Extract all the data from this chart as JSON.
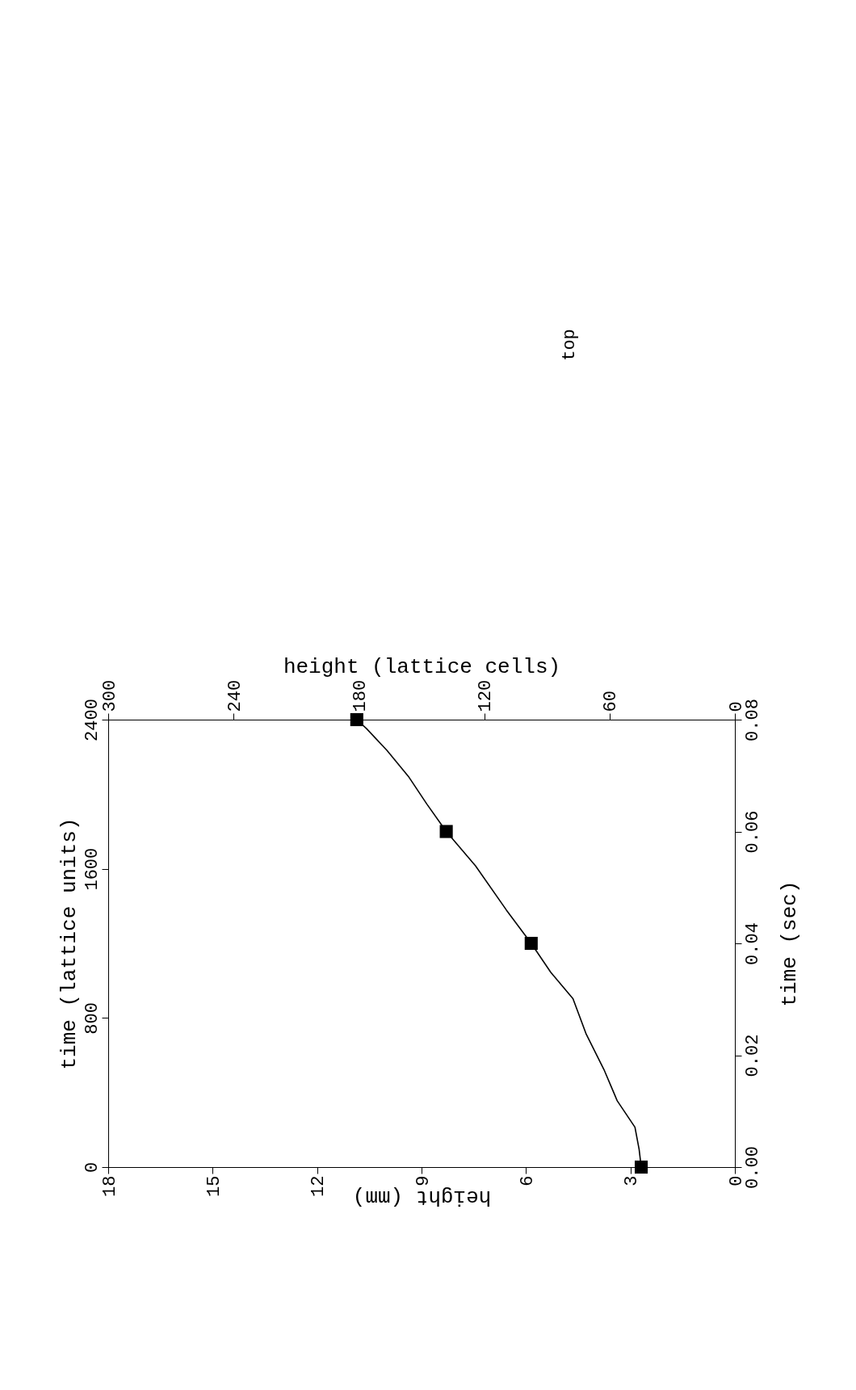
{
  "chart_data": {
    "type": "line",
    "xlabel": "height (mm)",
    "x2label": "height (lattice cells)",
    "ylabel": "time (lattice units)",
    "y2label": "time (sec)",
    "xlim": [
      18,
      0
    ],
    "xticks": [
      18,
      15,
      12,
      9,
      6,
      3,
      0
    ],
    "x2lim": [
      300,
      0
    ],
    "x2ticks": [
      300,
      240,
      180,
      120,
      60,
      0
    ],
    "ylim": [
      0,
      2400
    ],
    "yticks": [
      0,
      800,
      1600,
      2400
    ],
    "y2lim": [
      0,
      0.08
    ],
    "y2ticks": [
      {
        "value": 0,
        "label": "0.00"
      },
      {
        "value": 0.02,
        "label": "0.02"
      },
      {
        "value": 0.04,
        "label": "0.04"
      },
      {
        "value": 0.06,
        "label": "0.06"
      },
      {
        "value": 0.08,
        "label": "0.08"
      }
    ],
    "grid": false,
    "annotations": [
      "top"
    ],
    "series": [
      {
        "type": "line",
        "color": "#000000",
        "marker": "none",
        "x": [
          2.69,
          2.75,
          2.87,
          3.38,
          3.76,
          4.27,
          4.65,
          5.29,
          5.85,
          6.56,
          7.45,
          8.29,
          8.85,
          9.36,
          9.99,
          10.58,
          10.86
        ],
        "values": [
          0,
          95,
          214,
          356,
          523,
          713,
          903,
          1045,
          1200,
          1378,
          1616,
          1800,
          1948,
          2091,
          2234,
          2352,
          2400
        ]
      },
      {
        "type": "scatter",
        "color": "#000000",
        "marker": "square",
        "x": [
          2.69,
          5.85,
          8.29,
          10.86
        ],
        "values": [
          0,
          1200,
          1800,
          2400
        ]
      }
    ]
  }
}
